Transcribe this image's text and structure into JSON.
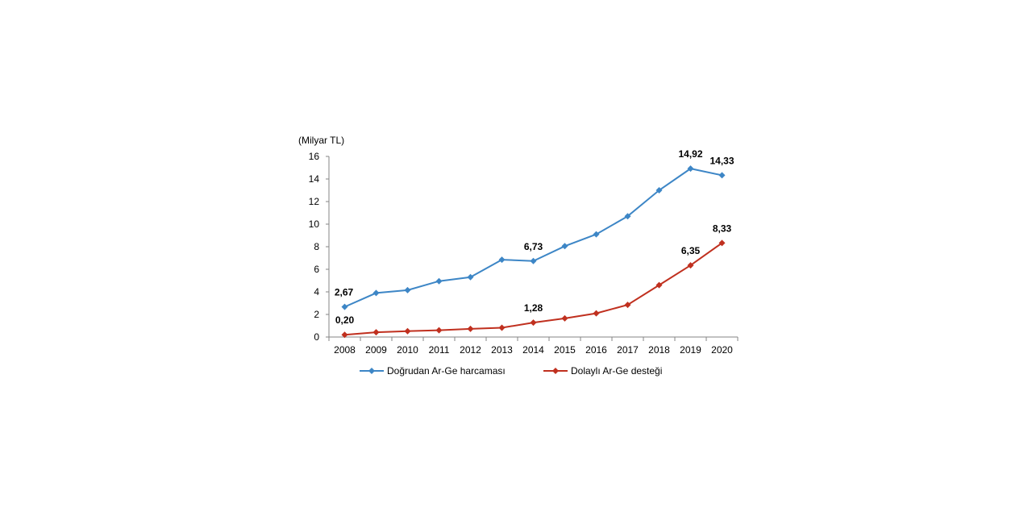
{
  "chart_data": {
    "type": "line",
    "unit_label": "(Milyar TL)",
    "categories": [
      "2008",
      "2009",
      "2010",
      "2011",
      "2012",
      "2013",
      "2014",
      "2015",
      "2016",
      "2017",
      "2018",
      "2019",
      "2020"
    ],
    "ylim": [
      0,
      16
    ],
    "yticks": [
      "0",
      "2",
      "4",
      "6",
      "8",
      "10",
      "12",
      "14",
      "16"
    ],
    "legend_position": "bottom",
    "series": [
      {
        "name": "Doğrudan Ar-Ge harcaması",
        "color": "#3d86c6",
        "values": [
          2.67,
          3.9,
          4.15,
          4.95,
          5.3,
          6.85,
          6.73,
          8.05,
          9.1,
          10.7,
          13.0,
          14.92,
          14.33
        ],
        "labels": [
          {
            "index": 0,
            "text": "2,67"
          },
          {
            "index": 6,
            "text": "6,73"
          },
          {
            "index": 11,
            "text": "14,92"
          },
          {
            "index": 12,
            "text": "14,33"
          }
        ]
      },
      {
        "name": "Dolaylı Ar-Ge desteği",
        "color": "#c0301f",
        "values": [
          0.2,
          0.42,
          0.52,
          0.6,
          0.72,
          0.82,
          1.28,
          1.65,
          2.1,
          2.85,
          4.6,
          6.35,
          8.33
        ],
        "labels": [
          {
            "index": 0,
            "text": "0,20"
          },
          {
            "index": 6,
            "text": "1,28"
          },
          {
            "index": 11,
            "text": "6,35"
          },
          {
            "index": 12,
            "text": "8,33"
          }
        ]
      }
    ]
  }
}
